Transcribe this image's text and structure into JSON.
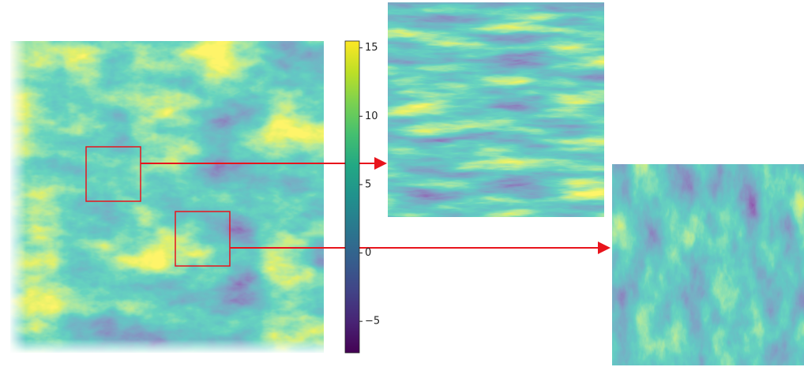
{
  "chart_data": {
    "type": "heatmap",
    "colormap": "viridis",
    "clim": [
      -7.3,
      15.5
    ],
    "cticks": [
      15,
      10,
      5,
      0,
      {
        "value": -5,
        "label": "−5"
      }
    ]
  }
}
